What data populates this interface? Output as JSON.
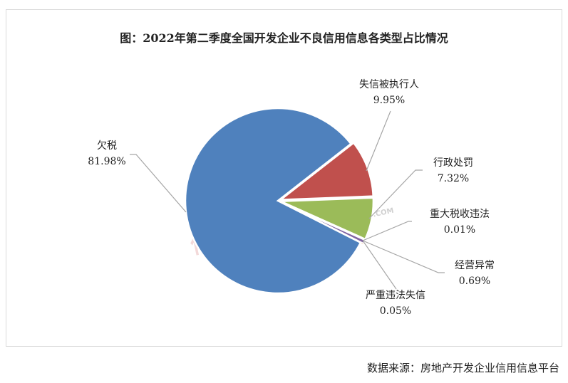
{
  "chart_data": {
    "type": "pie",
    "title": "图：2022年第二季度全国开发企业不良信用信息各类型占比情况",
    "start_angle_deg": 52,
    "direction": "clockwise",
    "slices": [
      {
        "label": "失信被执行人",
        "value": 9.95,
        "display": "9.95%",
        "color": "#C0504D"
      },
      {
        "label": "行政处罚",
        "value": 7.32,
        "display": "7.32%",
        "color": "#9BBB59"
      },
      {
        "label": "重大税收违法",
        "value": 0.01,
        "display": "0.01%",
        "color": "#4BACC6"
      },
      {
        "label": "经营异常",
        "value": 0.69,
        "display": "0.69%",
        "color": "#8064A2"
      },
      {
        "label": "严重违法失信",
        "value": 0.05,
        "display": "0.05%",
        "color": "#F79646"
      },
      {
        "label": "欠税",
        "value": 81.98,
        "display": "81.98%",
        "color": "#4F81BD"
      }
    ]
  },
  "source": "数据来源：房地产开发企业信用信息平台",
  "watermarks": [
    "信用房地产",
    "中房网",
    "FANGCHAN.COM"
  ]
}
